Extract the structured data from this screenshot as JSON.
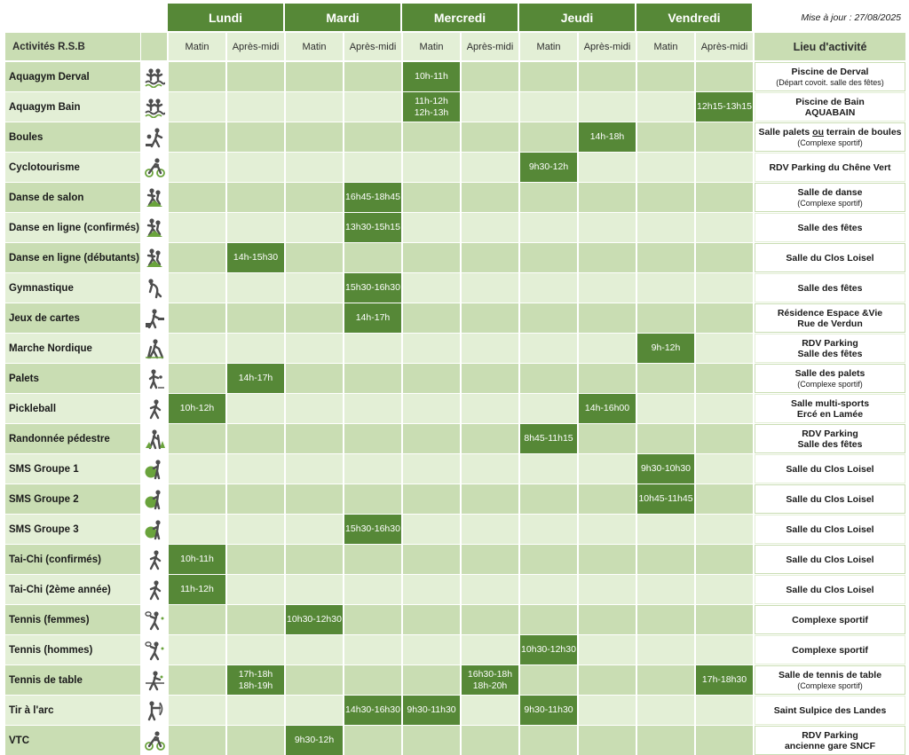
{
  "update_label": "Mise à jour : 27/08/2025",
  "colors": {
    "dark_green": "#568837",
    "light_green": "#c9ddb3",
    "pale_green": "#e3efd6",
    "icon_gray": "#4d4d4d",
    "icon_green": "#6aa33c"
  },
  "header": {
    "activities_label": "Activités R.S.B",
    "location_label": "Lieu d'activité",
    "days": [
      "Lundi",
      "Mardi",
      "Mercredi",
      "Jeudi",
      "Vendredi"
    ],
    "morning_label": "Matin",
    "afternoon_label": "Après-midi"
  },
  "rows": [
    {
      "name": "Aquagym Derval",
      "icon": "aquagym-icon",
      "lieu": [
        "Piscine de Derval"
      ],
      "note": "(Départ covoit. salle des fêtes)",
      "slots": [
        {
          "col": 4,
          "lines": [
            "10h-11h"
          ]
        }
      ]
    },
    {
      "name": "Aquagym Bain",
      "icon": "aquagym-icon",
      "lieu": [
        "Piscine de Bain",
        "AQUABAIN"
      ],
      "slots": [
        {
          "col": 4,
          "lines": [
            "11h-12h",
            "12h-13h"
          ]
        },
        {
          "col": 9,
          "lines": [
            "12h15-13h15"
          ]
        }
      ]
    },
    {
      "name": "Boules",
      "icon": "boules-icon",
      "lieu_pre": "Salle palets ",
      "lieu_u": "ou",
      "lieu_post": " terrain de boules",
      "note": "(Complexe sportif)",
      "slots": [
        {
          "col": 7,
          "lines": [
            "14h-18h"
          ]
        }
      ]
    },
    {
      "name": "Cyclotourisme",
      "icon": "cyclist-icon",
      "lieu": [
        "RDV Parking du Chêne Vert"
      ],
      "slots": [
        {
          "col": 6,
          "lines": [
            "9h30-12h"
          ]
        }
      ]
    },
    {
      "name": "Danse de salon",
      "icon": "dance-icon",
      "lieu": [
        "Salle de danse"
      ],
      "note": "(Complexe sportif)",
      "slots": [
        {
          "col": 3,
          "lines": [
            "16h45-18h45"
          ]
        }
      ]
    },
    {
      "name": "Danse en ligne (confirmés)",
      "icon": "dance-icon",
      "lieu": [
        "Salle des fêtes"
      ],
      "slots": [
        {
          "col": 3,
          "lines": [
            "13h30-15h15"
          ]
        }
      ]
    },
    {
      "name": "Danse en ligne (débutants)",
      "icon": "dance-icon",
      "lieu": [
        "Salle du Clos Loisel"
      ],
      "slots": [
        {
          "col": 1,
          "lines": [
            "14h-15h30"
          ]
        }
      ]
    },
    {
      "name": "Gymnastique",
      "icon": "gym-icon",
      "lieu": [
        "Salle des fêtes"
      ],
      "slots": [
        {
          "col": 3,
          "lines": [
            "15h30-16h30"
          ]
        }
      ]
    },
    {
      "name": "Jeux de cartes",
      "icon": "cards-icon",
      "lieu": [
        "Résidence Espace &Vie",
        "Rue de Verdun"
      ],
      "slots": [
        {
          "col": 3,
          "lines": [
            "14h-17h"
          ]
        }
      ]
    },
    {
      "name": "Marche Nordique",
      "icon": "nordic-walk-icon",
      "lieu": [
        "RDV Parking",
        "Salle des fêtes"
      ],
      "slots": [
        {
          "col": 8,
          "lines": [
            "9h-12h"
          ]
        }
      ]
    },
    {
      "name": "Palets",
      "icon": "palets-icon",
      "lieu": [
        "Salle des palets"
      ],
      "note": "(Complexe sportif)",
      "slots": [
        {
          "col": 1,
          "lines": [
            "14h-17h"
          ]
        }
      ]
    },
    {
      "name": "Pickleball",
      "icon": "racket-icon",
      "lieu": [
        "Salle multi-sports",
        "Ercé en Lamée"
      ],
      "slots": [
        {
          "col": 0,
          "lines": [
            "10h-12h"
          ]
        },
        {
          "col": 7,
          "lines": [
            "14h-16h00"
          ]
        }
      ]
    },
    {
      "name": "Randonnée pédestre",
      "icon": "hiking-icon",
      "lieu": [
        "RDV Parking",
        "Salle des fêtes"
      ],
      "slots": [
        {
          "col": 6,
          "lines": [
            "8h45-11h15"
          ]
        }
      ]
    },
    {
      "name": "SMS Groupe 1",
      "icon": "swiss-ball-icon",
      "lieu": [
        "Salle du Clos Loisel"
      ],
      "slots": [
        {
          "col": 8,
          "lines": [
            "9h30-10h30"
          ]
        }
      ]
    },
    {
      "name": "SMS Groupe 2",
      "icon": "swiss-ball-icon",
      "lieu": [
        "Salle du Clos Loisel"
      ],
      "slots": [
        {
          "col": 8,
          "lines": [
            "10h45-11h45"
          ]
        }
      ]
    },
    {
      "name": "SMS Groupe 3",
      "icon": "swiss-ball-icon",
      "lieu": [
        "Salle du Clos Loisel"
      ],
      "slots": [
        {
          "col": 3,
          "lines": [
            "15h30-16h30"
          ]
        }
      ]
    },
    {
      "name": "Tai-Chi (confirmés)",
      "icon": "taichi-icon",
      "lieu": [
        "Salle du Clos Loisel"
      ],
      "slots": [
        {
          "col": 0,
          "lines": [
            "10h-11h"
          ]
        }
      ]
    },
    {
      "name": "Tai-Chi (2ème année)",
      "icon": "taichi-icon",
      "lieu": [
        "Salle du Clos Loisel"
      ],
      "slots": [
        {
          "col": 0,
          "lines": [
            "11h-12h"
          ]
        }
      ]
    },
    {
      "name": "Tennis  (femmes)",
      "icon": "tennis-icon",
      "lieu": [
        "Complexe sportif"
      ],
      "slots": [
        {
          "col": 2,
          "lines": [
            "10h30-12h30"
          ]
        }
      ]
    },
    {
      "name": "Tennis (hommes)",
      "icon": "tennis-icon",
      "lieu": [
        "Complexe sportif"
      ],
      "slots": [
        {
          "col": 6,
          "lines": [
            "10h30-12h30"
          ]
        }
      ]
    },
    {
      "name": "Tennis de table",
      "icon": "table-tennis-icon",
      "lieu": [
        "Salle de tennis de table"
      ],
      "note": "(Complexe sportif)",
      "slots": [
        {
          "col": 1,
          "lines": [
            "17h-18h",
            "18h-19h"
          ]
        },
        {
          "col": 5,
          "lines": [
            "16h30-18h",
            "18h-20h"
          ]
        },
        {
          "col": 9,
          "lines": [
            "17h-18h30"
          ]
        }
      ]
    },
    {
      "name": "Tir à l'arc",
      "icon": "archery-icon",
      "lieu": [
        "Saint Sulpice des Landes"
      ],
      "slots": [
        {
          "col": 3,
          "lines": [
            "14h30-16h30"
          ]
        },
        {
          "col": 4,
          "lines": [
            "9h30-11h30"
          ]
        },
        {
          "col": 6,
          "lines": [
            "9h30-11h30"
          ]
        }
      ]
    },
    {
      "name": "VTC",
      "icon": "cyclist-icon",
      "lieu": [
        "RDV Parking",
        "ancienne gare SNCF"
      ],
      "slots": [
        {
          "col": 2,
          "lines": [
            "9h30-12h"
          ]
        }
      ]
    }
  ]
}
